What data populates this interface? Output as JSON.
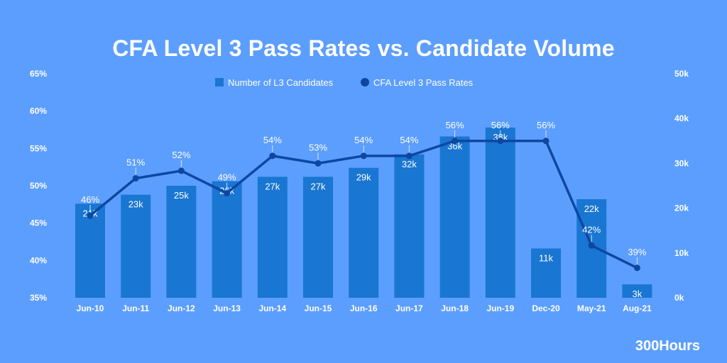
{
  "title": "CFA Level 3 Pass Rates vs. Candidate Volume",
  "brand": "300Hours",
  "colors": {
    "background": "#5C9EFD",
    "bar": "#1976D2",
    "line": "#0D47A1",
    "text": "#FFFFFF",
    "label_leader": "#CFE3FF"
  },
  "chart_data": {
    "type": "bar",
    "categories": [
      "Jun-10",
      "Jun-11",
      "Jun-12",
      "Jun-13",
      "Jun-14",
      "Jun-15",
      "Jun-16",
      "Jun-17",
      "Jun-18",
      "Jun-19",
      "Dec-20",
      "May-21",
      "Aug-21"
    ],
    "series": [
      {
        "name": "Number of L3 Candidates",
        "type": "bar",
        "axis": "right",
        "values": [
          21000,
          23000,
          25000,
          26000,
          27000,
          27000,
          29000,
          32000,
          36000,
          38000,
          11000,
          22000,
          3000
        ],
        "labels": [
          "21k",
          "23k",
          "25k",
          "26k",
          "27k",
          "27k",
          "29k",
          "32k",
          "36k",
          "38k",
          "11k",
          "22k",
          "3k"
        ]
      },
      {
        "name": "CFA Level 3 Pass Rates",
        "type": "line",
        "axis": "left",
        "values": [
          46,
          51,
          52,
          49,
          54,
          53,
          54,
          54,
          56,
          56,
          56,
          42,
          39
        ],
        "labels": [
          "46%",
          "51%",
          "52%",
          "49%",
          "54%",
          "53%",
          "54%",
          "54%",
          "56%",
          "56%",
          "56%",
          "42%",
          "39%"
        ]
      }
    ],
    "left_axis": {
      "ylim": [
        35,
        65
      ],
      "ticks": [
        35,
        40,
        45,
        50,
        55,
        60,
        65
      ],
      "tick_labels": [
        "35%",
        "40%",
        "45%",
        "50%",
        "55%",
        "60%",
        "65%"
      ]
    },
    "right_axis": {
      "ylim": [
        0,
        50000
      ],
      "ticks": [
        0,
        10000,
        20000,
        30000,
        40000,
        50000
      ],
      "tick_labels": [
        "0k",
        "10k",
        "20k",
        "30k",
        "40k",
        "50k"
      ]
    },
    "grid": false,
    "legend_position": "top-center"
  }
}
